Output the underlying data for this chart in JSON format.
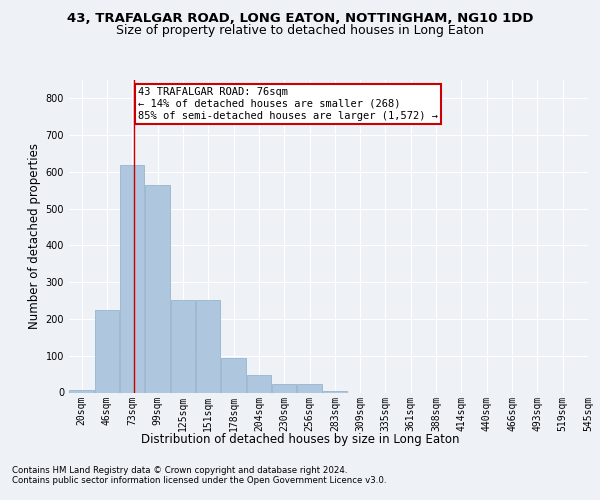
{
  "title_line1": "43, TRAFALGAR ROAD, LONG EATON, NOTTINGHAM, NG10 1DD",
  "title_line2": "Size of property relative to detached houses in Long Eaton",
  "xlabel": "Distribution of detached houses by size in Long Eaton",
  "ylabel": "Number of detached properties",
  "bar_labels": [
    "20sqm",
    "46sqm",
    "73sqm",
    "99sqm",
    "125sqm",
    "151sqm",
    "178sqm",
    "204sqm",
    "230sqm",
    "256sqm",
    "283sqm",
    "309sqm",
    "335sqm",
    "361sqm",
    "388sqm",
    "414sqm",
    "440sqm",
    "466sqm",
    "493sqm",
    "519sqm",
    "545sqm"
  ],
  "bar_values": [
    8,
    225,
    620,
    565,
    252,
    252,
    95,
    48,
    22,
    22,
    5,
    0,
    0,
    0,
    0,
    0,
    0,
    0,
    0,
    0,
    0
  ],
  "bar_color": "#aec6de",
  "bar_edge_color": "#8aaec8",
  "annotation_text": "43 TRAFALGAR ROAD: 76sqm\n← 14% of detached houses are smaller (268)\n85% of semi-detached houses are larger (1,572) →",
  "annotation_box_color": "#ffffff",
  "annotation_box_edgecolor": "#cc0000",
  "vline_color": "#cc0000",
  "vline_x": 76,
  "ylim": [
    0,
    850
  ],
  "yticks": [
    0,
    100,
    200,
    300,
    400,
    500,
    600,
    700,
    800
  ],
  "background_color": "#eef2f7",
  "axes_background": "#eef2f7",
  "grid_color": "#ffffff",
  "footer1": "Contains HM Land Registry data © Crown copyright and database right 2024.",
  "footer2": "Contains public sector information licensed under the Open Government Licence v3.0.",
  "title_fontsize": 9.5,
  "subtitle_fontsize": 9,
  "tick_fontsize": 7,
  "label_fontsize": 8.5,
  "annotation_fontsize": 7.5,
  "footer_fontsize": 6.2
}
